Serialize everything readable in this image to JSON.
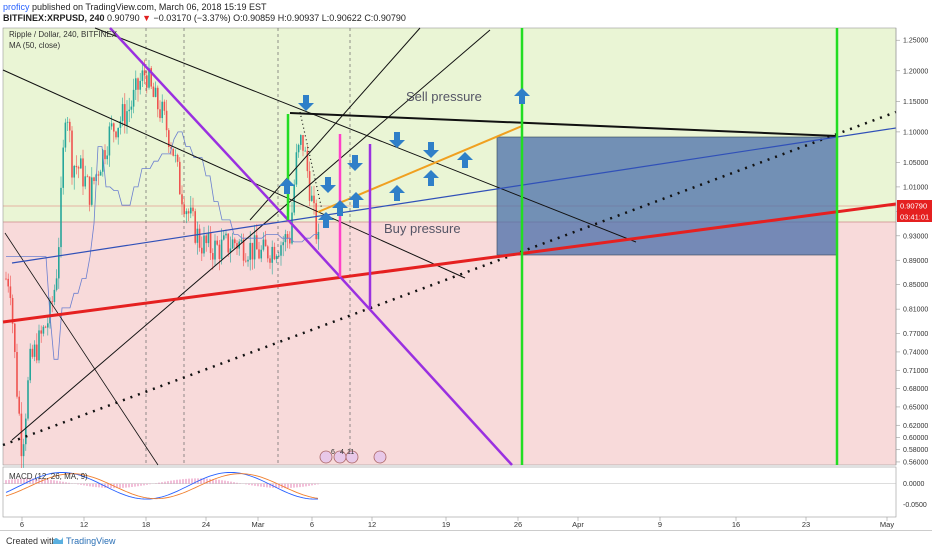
{
  "header": {
    "user": "proficy",
    "published": " published on TradingView.com, March 06, 2018 15:19 EST",
    "symbol": "BITFINEX:XRPUSD, 240",
    "last": "0.90790",
    "change": "−0.03170 (−3.37%)",
    "open": "O:0.90859",
    "high": "H:0.90937",
    "low": "L:0.90622",
    "close": "C:0.90790"
  },
  "overlays": {
    "pair": "Ripple / Dollar, 240, BITFINEX",
    "ma": "MA (50, close)"
  },
  "annotations": {
    "sell": "Sell pressure",
    "buy": "Buy pressure"
  },
  "price_tags": {
    "last": "0.90790",
    "timer": "03:41:01"
  },
  "event_markers": [
    "6",
    "4",
    "11"
  ],
  "footer": {
    "created": "Created with",
    "brand": "TradingView"
  },
  "chart_data": [
    {
      "type": "candlestick",
      "x_ticks": [
        "6",
        "12",
        "18",
        "24",
        "Mar",
        "6",
        "12",
        "19",
        "26",
        "Apr",
        "9",
        "16",
        "23",
        "May"
      ],
      "y_ticks": [
        1.25,
        1.2,
        1.15,
        1.1,
        1.05,
        1.01,
        0.97,
        0.93,
        0.89,
        0.85,
        0.81,
        0.77,
        0.74,
        0.71,
        0.68,
        0.65,
        0.62,
        0.6,
        0.58,
        0.56
      ],
      "ylim": [
        0.555,
        1.27
      ],
      "colors": {
        "up": "#26a69a",
        "down": "#ef5350",
        "sell_zone": "#eaf5d5",
        "buy_zone": "#f8dada",
        "box": "#4a6ea9",
        "trend": "#e52020",
        "wedge": "#9a30e0",
        "channel": "#f0a020",
        "vertical": "#22dd22"
      },
      "last_price": 0.9079
    },
    {
      "type": "line",
      "title": "MACD (12, 26, MA, 9)",
      "y_ticks": [
        "0.0000",
        "-0.0500"
      ],
      "ylim": [
        -0.08,
        0.04
      ]
    }
  ]
}
